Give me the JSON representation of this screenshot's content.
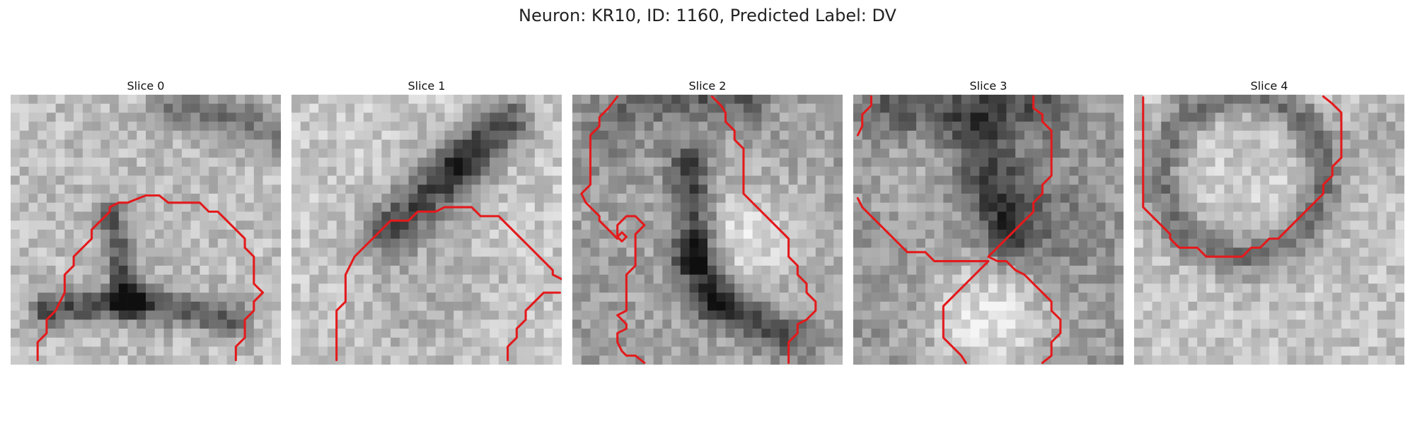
{
  "figure": {
    "title": "Neuron: KR10, ID: 1160, Predicted Label: DV",
    "contour_color": "#e31a1c",
    "panels": [
      {
        "title": "Slice 0",
        "image": "grayscale-em-patch",
        "overlay": "red-contour"
      },
      {
        "title": "Slice 1",
        "image": "grayscale-em-patch",
        "overlay": "red-contour"
      },
      {
        "title": "Slice 2",
        "image": "grayscale-em-patch",
        "overlay": "red-contour"
      },
      {
        "title": "Slice 3",
        "image": "grayscale-em-patch",
        "overlay": "red-contour"
      },
      {
        "title": "Slice 4",
        "image": "grayscale-em-patch",
        "overlay": "red-contour"
      }
    ]
  }
}
